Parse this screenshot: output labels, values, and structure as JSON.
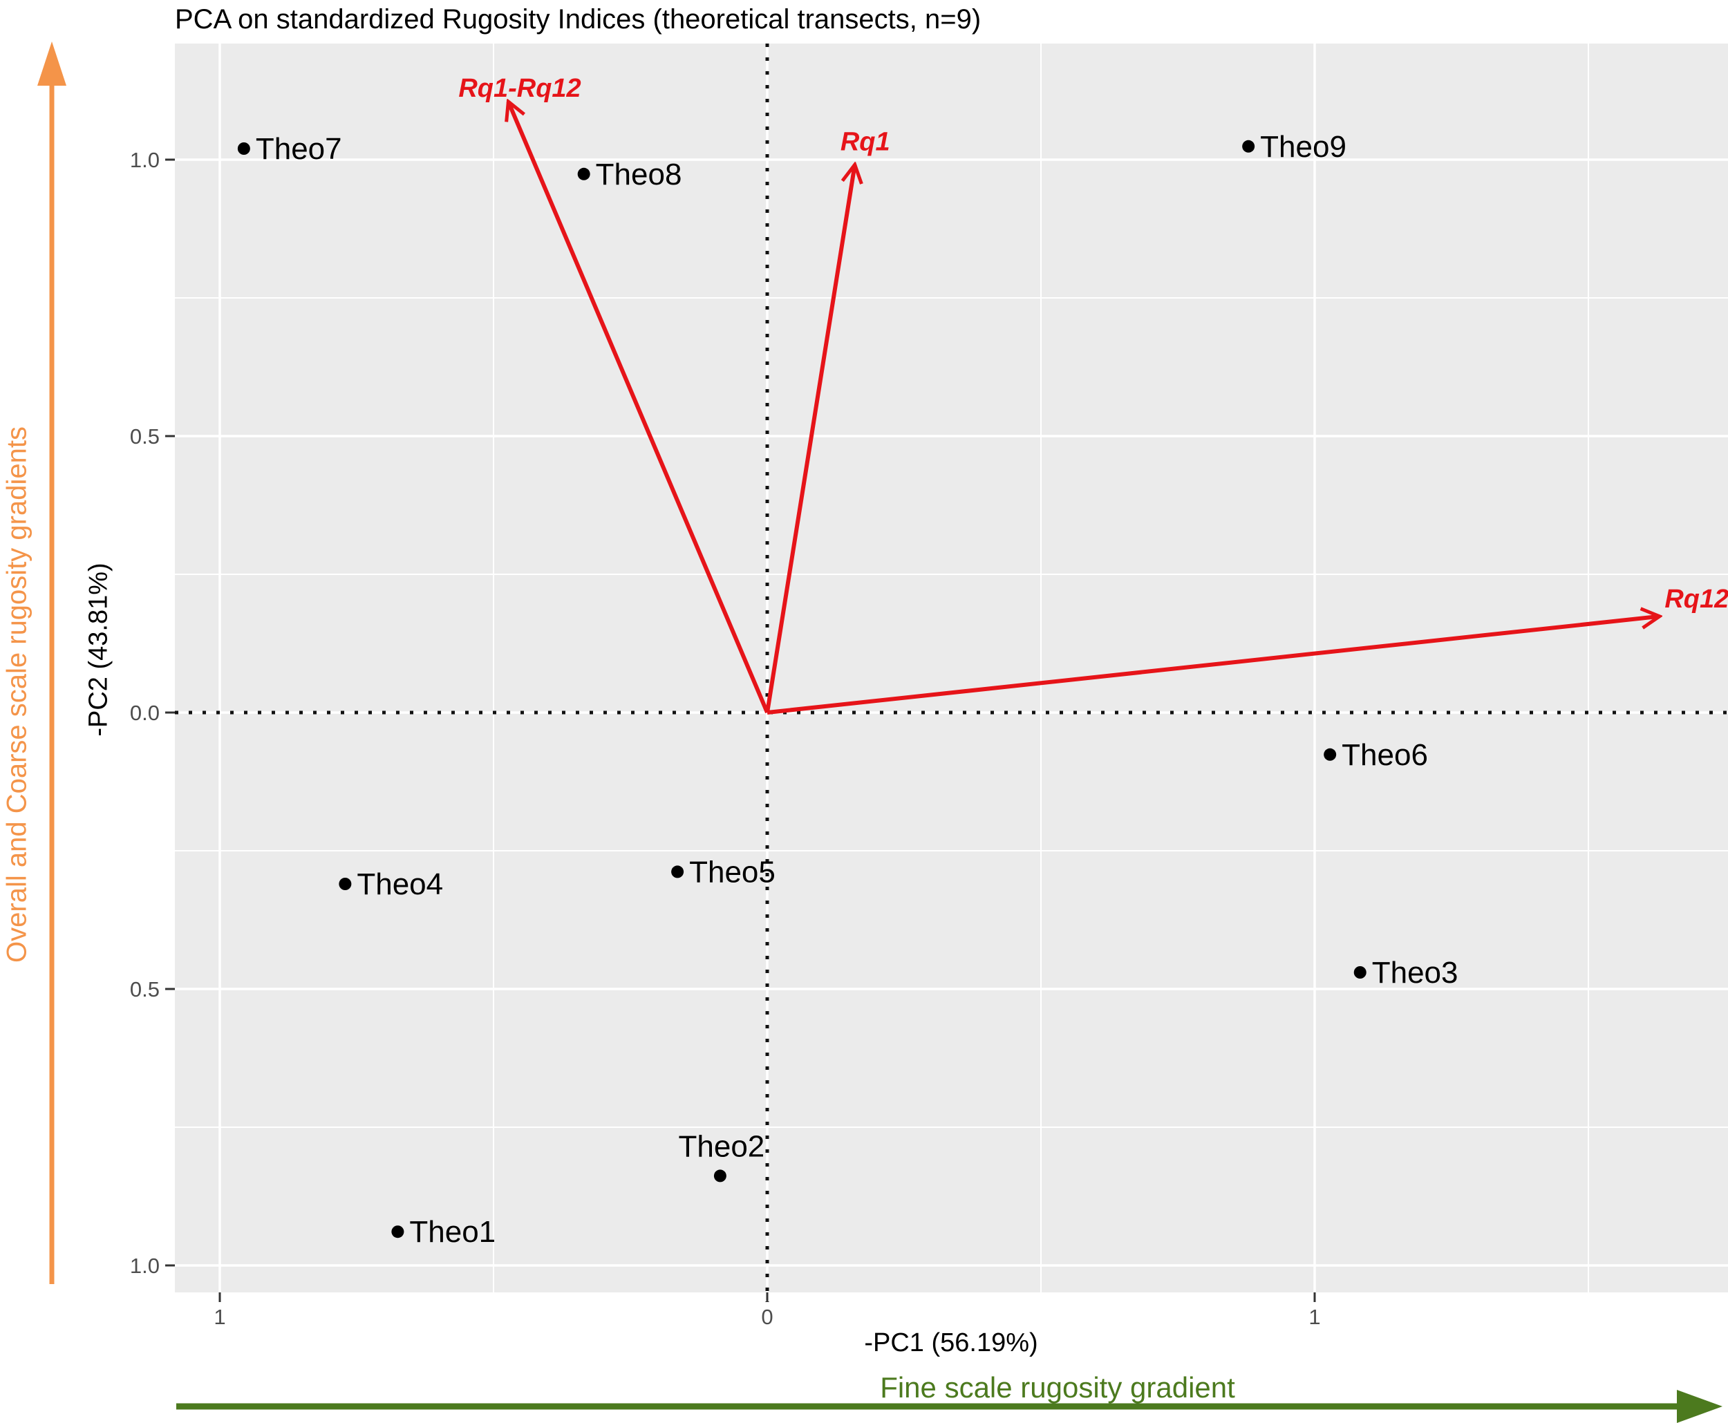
{
  "title": "PCA on standardized Rugosity Indices (theoretical transects, n=9)",
  "annotations": {
    "y_gradient": "Overall and Coarse scale rugosity gradients",
    "x_gradient": "Fine scale rugosity gradient"
  },
  "chart_data": {
    "type": "scatter",
    "subtype": "pca-biplot",
    "title": "PCA on standardized Rugosity Indices (theoretical transects, n=9)",
    "xlabel": "-PC1 (56.19%)",
    "ylabel": "-PC2 (43.81%)",
    "xlim": [
      -1.08,
      1.75
    ],
    "ylim": [
      -1.05,
      1.21
    ],
    "grid": "on",
    "x_ticks": [
      {
        "value": -1,
        "label": "1"
      },
      {
        "value": 0,
        "label": "0"
      },
      {
        "value": 1,
        "label": "1"
      }
    ],
    "y_ticks": [
      {
        "value": 1,
        "label": "1.0"
      },
      {
        "value": 0.5,
        "label": "0.5"
      },
      {
        "value": 0,
        "label": "0.0"
      },
      {
        "value": -0.5,
        "label": "0.5"
      },
      {
        "value": -1,
        "label": "1.0"
      }
    ],
    "x_minor": [
      -0.5,
      0.5,
      1.5
    ],
    "y_minor": [
      0.75,
      0.25,
      -0.25,
      -0.75
    ],
    "reference_lines": {
      "vertical_at": 0,
      "horizontal_at": 0,
      "style": "dotted"
    },
    "points": [
      {
        "name": "Theo1",
        "x": -0.675,
        "y": -0.939,
        "label_pos": "right"
      },
      {
        "name": "Theo2",
        "x": -0.086,
        "y": -0.838,
        "label_pos": "above"
      },
      {
        "name": "Theo3",
        "x": 1.083,
        "y": -0.47,
        "label_pos": "right"
      },
      {
        "name": "Theo4",
        "x": -0.771,
        "y": -0.31,
        "label_pos": "right"
      },
      {
        "name": "Theo5",
        "x": -0.164,
        "y": -0.288,
        "label_pos": "right"
      },
      {
        "name": "Theo6",
        "x": 1.028,
        "y": -0.076,
        "label_pos": "right"
      },
      {
        "name": "Theo7",
        "x": -0.956,
        "y": 1.02,
        "label_pos": "right"
      },
      {
        "name": "Theo8",
        "x": -0.335,
        "y": 0.974,
        "label_pos": "right"
      },
      {
        "name": "Theo9",
        "x": 0.879,
        "y": 1.024,
        "label_pos": "right"
      }
    ],
    "loadings": [
      {
        "name": "Rq1",
        "x": 0.16,
        "y": 0.991,
        "label_x": 0.179,
        "label_y": 1.033
      },
      {
        "name": "Rq1-Rq12",
        "x": -0.473,
        "y": 1.105,
        "label_x": -0.452,
        "label_y": 1.13
      },
      {
        "name": "Rq12",
        "x": 1.63,
        "y": 0.174,
        "label_x": 1.698,
        "label_y": 0.206
      }
    ],
    "colors": {
      "panel_background": "#ebebeb",
      "gridline": "#ffffff",
      "point": "#000000",
      "point_label": "#000000",
      "loading_arrow": "#e61419",
      "reference_line": "#111111",
      "tick_text": "#4d4d4d",
      "orange_gradient": "#f49449",
      "green_gradient": "#4c7a1e"
    }
  }
}
